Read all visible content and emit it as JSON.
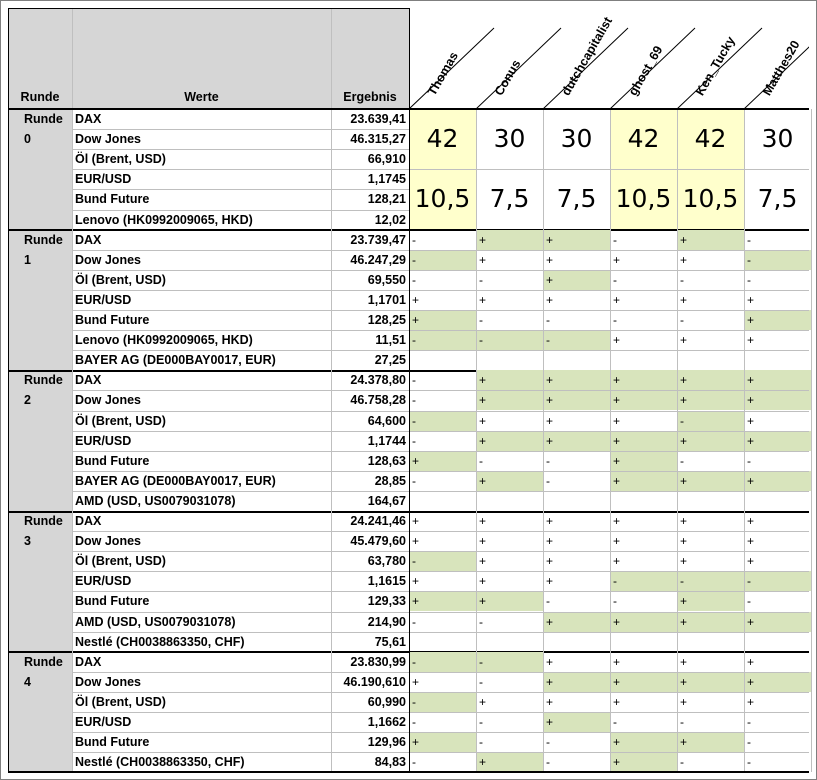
{
  "header": {
    "runde": "Runde",
    "werte": "Werte",
    "ergebnis": "Ergebnis"
  },
  "players": [
    "Thomas",
    "Conus",
    "dutchcapitalist",
    "ghost_69",
    "Ken_Tucky",
    "Matthes20"
  ],
  "colors": {
    "header_gray": "#d6d6d6",
    "green": "#d8e4bc",
    "yellow": "#ffffcc"
  },
  "round0": {
    "label": "Runde 0",
    "rows": [
      {
        "w": "DAX",
        "e": "23.639,41"
      },
      {
        "w": "Dow Jones",
        "e": "46.315,27"
      },
      {
        "w": "Öl (Brent, USD)",
        "e": "66,910"
      },
      {
        "w": "EUR/USD",
        "e": "1,1745"
      },
      {
        "w": "Bund Future",
        "e": "128,21"
      },
      {
        "w": "Lenovo (HK0992009065, HKD)",
        "e": "12,02"
      }
    ],
    "points": [
      "42",
      "30",
      "30",
      "42",
      "42",
      "30"
    ],
    "scores": [
      "10,5",
      "7,5",
      "7,5",
      "10,5",
      "10,5",
      "7,5"
    ],
    "highlight": [
      true,
      false,
      false,
      true,
      true,
      false
    ]
  },
  "rounds": [
    {
      "label": "Runde 1",
      "rows": [
        {
          "w": "DAX",
          "e": "23.739,47",
          "t": [
            "-",
            "+",
            "+",
            "-",
            "+",
            "-"
          ],
          "g": [
            0,
            1,
            1,
            0,
            1,
            0
          ]
        },
        {
          "w": "Dow Jones",
          "e": "46.247,29",
          "t": [
            "-",
            "+",
            "+",
            "+",
            "+",
            "-"
          ],
          "g": [
            1,
            0,
            0,
            0,
            0,
            1
          ]
        },
        {
          "w": "Öl (Brent, USD)",
          "e": "69,550",
          "t": [
            "-",
            "-",
            "+",
            "-",
            "-",
            "-"
          ],
          "g": [
            0,
            0,
            1,
            0,
            0,
            0
          ]
        },
        {
          "w": "EUR/USD",
          "e": "1,1701",
          "t": [
            "+",
            "+",
            "+",
            "+",
            "+",
            "+"
          ],
          "g": [
            0,
            0,
            0,
            0,
            0,
            0
          ]
        },
        {
          "w": "Bund Future",
          "e": "128,25",
          "t": [
            "+",
            "-",
            "-",
            "-",
            "-",
            "+"
          ],
          "g": [
            1,
            0,
            0,
            0,
            0,
            1
          ]
        },
        {
          "w": "Lenovo (HK0992009065, HKD)",
          "e": "11,51",
          "t": [
            "-",
            "-",
            "-",
            "+",
            "+",
            "+"
          ],
          "g": [
            1,
            1,
            1,
            0,
            0,
            0
          ]
        },
        {
          "w": "BAYER AG (DE000BAY0017, EUR)",
          "e": "27,25",
          "t": null,
          "g": null
        }
      ]
    },
    {
      "label": "Runde 2",
      "rows": [
        {
          "w": "DAX",
          "e": "24.378,80",
          "t": [
            "-",
            "+",
            "+",
            "+",
            "+",
            "+"
          ],
          "g": [
            0,
            1,
            1,
            1,
            1,
            1
          ]
        },
        {
          "w": "Dow Jones",
          "e": "46.758,28",
          "t": [
            "-",
            "+",
            "+",
            "+",
            "+",
            "+"
          ],
          "g": [
            0,
            1,
            1,
            1,
            1,
            1
          ]
        },
        {
          "w": "Öl (Brent, USD)",
          "e": "64,600",
          "t": [
            "-",
            "+",
            "+",
            "+",
            "-",
            "+"
          ],
          "g": [
            1,
            0,
            0,
            0,
            1,
            0
          ]
        },
        {
          "w": "EUR/USD",
          "e": "1,1744",
          "t": [
            "-",
            "+",
            "+",
            "+",
            "+",
            "+"
          ],
          "g": [
            0,
            1,
            1,
            1,
            1,
            1
          ]
        },
        {
          "w": "Bund Future",
          "e": "128,63",
          "t": [
            "+",
            "-",
            "-",
            "+",
            "-",
            "-"
          ],
          "g": [
            1,
            0,
            0,
            1,
            0,
            0
          ]
        },
        {
          "w": "BAYER AG (DE000BAY0017, EUR)",
          "e": "28,85",
          "t": [
            "-",
            "+",
            "-",
            "+",
            "+",
            "+"
          ],
          "g": [
            0,
            1,
            0,
            1,
            1,
            1
          ]
        },
        {
          "w": "AMD (USD, US0079031078)",
          "e": "164,67",
          "t": null,
          "g": null
        }
      ]
    },
    {
      "label": "Runde 3",
      "rows": [
        {
          "w": "DAX",
          "e": "24.241,46",
          "t": [
            "+",
            "+",
            "+",
            "+",
            "+",
            "+"
          ],
          "g": [
            0,
            0,
            0,
            0,
            0,
            0
          ]
        },
        {
          "w": "Dow Jones",
          "e": "45.479,60",
          "t": [
            "+",
            "+",
            "+",
            "+",
            "+",
            "+"
          ],
          "g": [
            0,
            0,
            0,
            0,
            0,
            0
          ]
        },
        {
          "w": "Öl (Brent, USD)",
          "e": "63,780",
          "t": [
            "-",
            "+",
            "+",
            "+",
            "+",
            "+"
          ],
          "g": [
            1,
            0,
            0,
            0,
            0,
            0
          ]
        },
        {
          "w": "EUR/USD",
          "e": "1,1615",
          "t": [
            "+",
            "+",
            "+",
            "-",
            "-",
            "-"
          ],
          "g": [
            0,
            0,
            0,
            1,
            1,
            1
          ]
        },
        {
          "w": "Bund Future",
          "e": "129,33",
          "t": [
            "+",
            "+",
            "-",
            "-",
            "+",
            "-"
          ],
          "g": [
            1,
            1,
            0,
            0,
            1,
            0
          ]
        },
        {
          "w": "AMD (USD, US0079031078)",
          "e": "214,90",
          "t": [
            "-",
            "-",
            "+",
            "+",
            "+",
            "+"
          ],
          "g": [
            0,
            0,
            1,
            1,
            1,
            1
          ]
        },
        {
          "w": "Nestlé (CH0038863350, CHF)",
          "e": "75,61",
          "t": null,
          "g": null
        }
      ]
    },
    {
      "label": "Runde 4",
      "rows": [
        {
          "w": "DAX",
          "e": "23.830,99",
          "t": [
            "-",
            "-",
            "+",
            "+",
            "+",
            "+"
          ],
          "g": [
            1,
            1,
            0,
            0,
            0,
            0
          ]
        },
        {
          "w": "Dow Jones",
          "e": "46.190,610",
          "t": [
            "+",
            "-",
            "+",
            "+",
            "+",
            "+"
          ],
          "g": [
            0,
            0,
            1,
            1,
            1,
            1
          ]
        },
        {
          "w": "Öl (Brent, USD)",
          "e": "60,990",
          "t": [
            "-",
            "+",
            "+",
            "+",
            "+",
            "+"
          ],
          "g": [
            1,
            0,
            0,
            0,
            0,
            0
          ]
        },
        {
          "w": "EUR/USD",
          "e": "1,1662",
          "t": [
            "-",
            "-",
            "+",
            "-",
            "-",
            "-"
          ],
          "g": [
            0,
            0,
            1,
            0,
            0,
            0
          ]
        },
        {
          "w": "Bund Future",
          "e": "129,96",
          "t": [
            "+",
            "-",
            "-",
            "+",
            "+",
            "-"
          ],
          "g": [
            1,
            0,
            0,
            1,
            1,
            0
          ]
        },
        {
          "w": "Nestlé (CH0038863350, CHF)",
          "e": "84,83",
          "t": [
            "-",
            "+",
            "-",
            "+",
            "-",
            "-"
          ],
          "g": [
            0,
            1,
            0,
            1,
            0,
            0
          ]
        }
      ]
    }
  ]
}
